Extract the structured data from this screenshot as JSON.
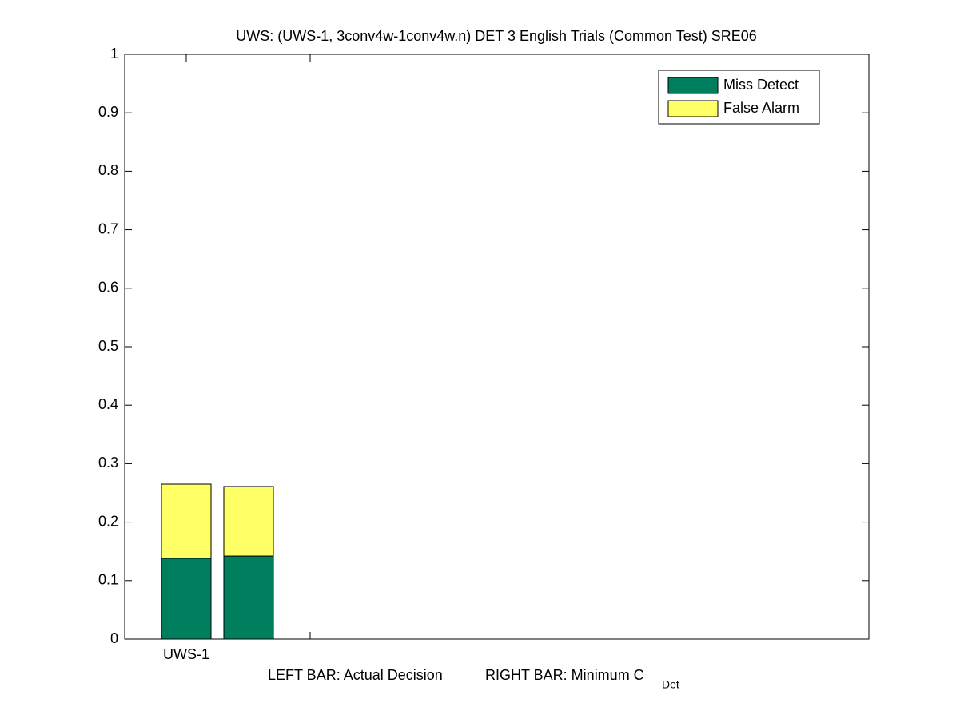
{
  "chart_data": {
    "type": "stacked_bar",
    "title": "UWS: (UWS-1, 3conv4w-1conv4w.n) DET 3 English Trials (Common Test) SRE06",
    "xlabel_left": "LEFT BAR: Actual Decision",
    "xlabel_right": "RIGHT BAR: Minimum C",
    "xlabel_subscript": "Det",
    "categories": [
      "UWS-1"
    ],
    "series": [
      {
        "name": "Miss Detect",
        "color": "#007f5f",
        "values": [
          [
            0.138,
            0.142
          ]
        ]
      },
      {
        "name": "False Alarm",
        "color": "#ffff66",
        "values": [
          [
            0.127,
            0.119
          ]
        ]
      }
    ],
    "ylim": [
      0,
      1
    ],
    "yticks": [
      0,
      0.1,
      0.2,
      0.3,
      0.4,
      0.5,
      0.6,
      0.7,
      0.8,
      0.9,
      1
    ],
    "legend": "upper right"
  }
}
